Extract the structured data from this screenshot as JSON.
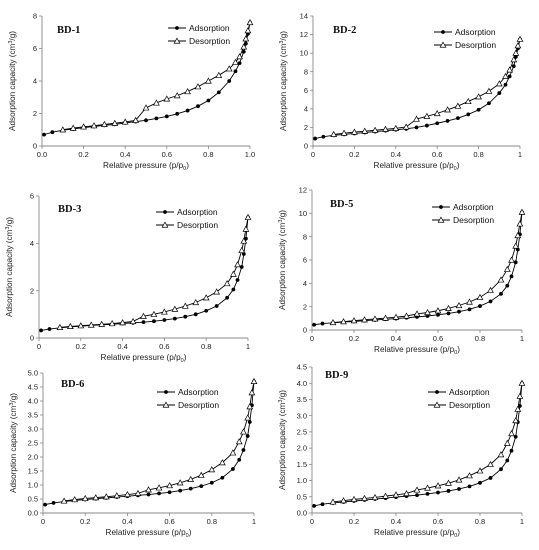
{
  "chart_data": [
    {
      "type": "line",
      "panel_label": "BD-1",
      "xlabel_main": "Relative pressure (p/p",
      "xlabel_sub": "0",
      "xlabel_end": ")",
      "ylabel_main": "Adsorption  capacity (cm",
      "ylabel_sup": "3",
      "ylabel_end": "/g)",
      "xlim": [
        0,
        1
      ],
      "ylim": [
        0,
        8
      ],
      "xticks": [
        "0.0",
        "0.2",
        "0.4",
        "0.6",
        "0.8",
        "1.0"
      ],
      "yticks": [
        "0",
        "2",
        "4",
        "6",
        "8"
      ],
      "legend_position": "top-right",
      "series": [
        {
          "name": "Adsorption",
          "marker": "filled-circle",
          "x": [
            0.01,
            0.05,
            0.1,
            0.15,
            0.2,
            0.25,
            0.3,
            0.35,
            0.4,
            0.45,
            0.5,
            0.55,
            0.6,
            0.65,
            0.7,
            0.75,
            0.8,
            0.85,
            0.9,
            0.93,
            0.95,
            0.97,
            0.98,
            0.99,
            1.0
          ],
          "y": [
            0.7,
            0.85,
            0.97,
            1.05,
            1.13,
            1.2,
            1.27,
            1.33,
            1.42,
            1.5,
            1.58,
            1.7,
            1.82,
            1.98,
            2.18,
            2.45,
            2.8,
            3.3,
            4.0,
            4.6,
            5.1,
            5.8,
            6.3,
            6.9,
            7.6
          ]
        },
        {
          "name": "Desorption",
          "marker": "open-triangle",
          "x": [
            1.0,
            0.99,
            0.98,
            0.97,
            0.95,
            0.93,
            0.9,
            0.85,
            0.8,
            0.75,
            0.7,
            0.65,
            0.6,
            0.55,
            0.5,
            0.45,
            0.4,
            0.35,
            0.3,
            0.25,
            0.2,
            0.15,
            0.1
          ],
          "y": [
            7.6,
            7.1,
            6.6,
            6.1,
            5.5,
            5.15,
            4.75,
            4.35,
            4.0,
            3.65,
            3.35,
            3.1,
            2.9,
            2.65,
            2.35,
            1.58,
            1.48,
            1.4,
            1.33,
            1.25,
            1.18,
            1.1,
            1.0
          ]
        }
      ]
    },
    {
      "type": "line",
      "panel_label": "BD-2",
      "xlabel_main": "Relative pressure (p/p",
      "xlabel_sub": "0",
      "xlabel_end": ")",
      "ylabel_main": "Adsorption capacity (cm",
      "ylabel_sup": "3",
      "ylabel_end": "/g)",
      "xlim": [
        0,
        1
      ],
      "ylim": [
        0,
        14
      ],
      "xticks": [
        "0",
        "0.2",
        "0.4",
        "0.6",
        "0.8",
        "1"
      ],
      "yticks": [
        "0",
        "2",
        "4",
        "6",
        "8",
        "10",
        "12",
        "14"
      ],
      "legend_position": "top-right",
      "series": [
        {
          "name": "Adsorption",
          "marker": "filled-circle",
          "x": [
            0.01,
            0.05,
            0.1,
            0.15,
            0.2,
            0.25,
            0.3,
            0.35,
            0.4,
            0.45,
            0.5,
            0.55,
            0.6,
            0.65,
            0.7,
            0.75,
            0.8,
            0.85,
            0.9,
            0.93,
            0.95,
            0.97,
            0.98,
            0.99,
            1.0
          ],
          "y": [
            0.8,
            1.0,
            1.15,
            1.25,
            1.35,
            1.45,
            1.55,
            1.65,
            1.75,
            1.85,
            2.0,
            2.2,
            2.45,
            2.7,
            3.0,
            3.4,
            3.9,
            4.6,
            5.7,
            6.6,
            7.5,
            8.6,
            9.6,
            10.5,
            11.5
          ]
        },
        {
          "name": "Desorption",
          "marker": "open-triangle",
          "x": [
            1.0,
            0.99,
            0.98,
            0.97,
            0.95,
            0.93,
            0.9,
            0.85,
            0.8,
            0.75,
            0.7,
            0.65,
            0.6,
            0.55,
            0.5,
            0.45,
            0.4,
            0.35,
            0.3,
            0.25,
            0.2,
            0.15,
            0.1
          ],
          "y": [
            11.5,
            10.8,
            10.0,
            9.3,
            8.2,
            7.5,
            6.7,
            5.9,
            5.3,
            4.8,
            4.3,
            3.9,
            3.5,
            3.2,
            2.9,
            2.05,
            1.9,
            1.8,
            1.7,
            1.6,
            1.5,
            1.38,
            1.25
          ]
        }
      ]
    },
    {
      "type": "line",
      "panel_label": "BD-3",
      "xlabel_main": "Relative pressure (p/p",
      "xlabel_sub": "0",
      "xlabel_end": ")",
      "ylabel_main": "Adsorption capacity (cm",
      "ylabel_sup": "3",
      "ylabel_end": "/g)",
      "xlim": [
        0,
        1
      ],
      "ylim": [
        0,
        6
      ],
      "xticks": [
        "0",
        "0.2",
        "0.4",
        "0.6",
        "0.8",
        "1"
      ],
      "yticks": [
        "0",
        "2",
        "4",
        "6"
      ],
      "legend_position": "top-right",
      "series": [
        {
          "name": "Adsorption",
          "marker": "filled-circle",
          "x": [
            0.01,
            0.05,
            0.1,
            0.15,
            0.2,
            0.25,
            0.3,
            0.35,
            0.4,
            0.45,
            0.5,
            0.55,
            0.6,
            0.65,
            0.7,
            0.75,
            0.8,
            0.85,
            0.9,
            0.93,
            0.95,
            0.97,
            0.98,
            0.99,
            1.0
          ],
          "y": [
            0.32,
            0.38,
            0.43,
            0.47,
            0.5,
            0.53,
            0.56,
            0.58,
            0.61,
            0.64,
            0.67,
            0.71,
            0.76,
            0.82,
            0.9,
            1.0,
            1.15,
            1.35,
            1.7,
            2.05,
            2.45,
            3.0,
            3.55,
            4.2,
            5.1
          ]
        },
        {
          "name": "Desorption",
          "marker": "open-triangle",
          "x": [
            1.0,
            0.99,
            0.98,
            0.97,
            0.95,
            0.93,
            0.9,
            0.85,
            0.8,
            0.75,
            0.7,
            0.65,
            0.6,
            0.55,
            0.5,
            0.45,
            0.4,
            0.35,
            0.3,
            0.25,
            0.2,
            0.15,
            0.1
          ],
          "y": [
            5.1,
            4.6,
            4.1,
            3.7,
            3.1,
            2.7,
            2.3,
            1.95,
            1.7,
            1.5,
            1.35,
            1.22,
            1.1,
            1.0,
            0.92,
            0.7,
            0.65,
            0.61,
            0.58,
            0.55,
            0.52,
            0.49,
            0.45
          ]
        }
      ]
    },
    {
      "type": "line",
      "panel_label": "BD-5",
      "xlabel_main": "Relative pressure (p/p",
      "xlabel_sub": "0",
      "xlabel_end": ")",
      "ylabel_main": "Adsorption capacity (cm",
      "ylabel_sup": "3",
      "ylabel_end": "/g)",
      "xlim": [
        0,
        1
      ],
      "ylim": [
        0,
        12
      ],
      "xticks": [
        "0",
        "0.2",
        "0.4",
        "0.6",
        "0.8",
        "1"
      ],
      "yticks": [
        "0",
        "2",
        "4",
        "6",
        "8",
        "10",
        "12"
      ],
      "legend_position": "top-right",
      "series": [
        {
          "name": "Adsorption",
          "marker": "filled-circle",
          "x": [
            0.01,
            0.05,
            0.1,
            0.15,
            0.2,
            0.25,
            0.3,
            0.35,
            0.4,
            0.45,
            0.5,
            0.55,
            0.6,
            0.65,
            0.7,
            0.75,
            0.8,
            0.85,
            0.9,
            0.93,
            0.95,
            0.97,
            0.98,
            0.99,
            1.0
          ],
          "y": [
            0.45,
            0.55,
            0.62,
            0.68,
            0.74,
            0.8,
            0.86,
            0.92,
            0.98,
            1.05,
            1.12,
            1.2,
            1.3,
            1.42,
            1.57,
            1.77,
            2.05,
            2.45,
            3.1,
            3.8,
            4.6,
            5.8,
            6.9,
            8.2,
            10.1
          ]
        },
        {
          "name": "Desorption",
          "marker": "open-triangle",
          "x": [
            1.0,
            0.99,
            0.98,
            0.97,
            0.95,
            0.93,
            0.9,
            0.85,
            0.8,
            0.75,
            0.7,
            0.65,
            0.6,
            0.55,
            0.5,
            0.45,
            0.4,
            0.35,
            0.3,
            0.25,
            0.2,
            0.15,
            0.1
          ],
          "y": [
            10.1,
            9.1,
            8.1,
            7.2,
            6.0,
            5.2,
            4.3,
            3.4,
            2.8,
            2.4,
            2.1,
            1.85,
            1.65,
            1.5,
            1.38,
            1.2,
            1.1,
            1.02,
            0.95,
            0.88,
            0.8,
            0.72,
            0.64
          ]
        }
      ]
    },
    {
      "type": "line",
      "panel_label": "BD-6",
      "xlabel_main": "Relative pressure (p/p",
      "xlabel_sub": "0",
      "xlabel_end": ")",
      "ylabel_main": "Adsorption capacity (cm",
      "ylabel_sup": "3",
      "ylabel_end": "/g)",
      "xlim": [
        0,
        1
      ],
      "ylim": [
        0,
        5
      ],
      "xticks": [
        "0",
        "0.2",
        "0.4",
        "0.6",
        "0.8",
        "1"
      ],
      "yticks": [
        "0.0",
        "0.5",
        "1.0",
        "1.5",
        "2.0",
        "2.5",
        "3.0",
        "3.5",
        "4.0",
        "4.5",
        "5.0"
      ],
      "legend_position": "top-right",
      "series": [
        {
          "name": "Adsorption",
          "marker": "filled-circle",
          "x": [
            0.01,
            0.05,
            0.1,
            0.15,
            0.2,
            0.25,
            0.3,
            0.35,
            0.4,
            0.45,
            0.5,
            0.55,
            0.6,
            0.65,
            0.7,
            0.75,
            0.8,
            0.85,
            0.9,
            0.93,
            0.95,
            0.97,
            0.98,
            0.99,
            1.0
          ],
          "y": [
            0.3,
            0.36,
            0.41,
            0.45,
            0.48,
            0.51,
            0.54,
            0.57,
            0.6,
            0.63,
            0.66,
            0.7,
            0.74,
            0.8,
            0.87,
            0.96,
            1.08,
            1.26,
            1.57,
            1.9,
            2.25,
            2.75,
            3.25,
            3.85,
            4.7
          ]
        },
        {
          "name": "Desorption",
          "marker": "open-triangle",
          "x": [
            1.0,
            0.99,
            0.98,
            0.97,
            0.95,
            0.93,
            0.9,
            0.85,
            0.8,
            0.75,
            0.7,
            0.65,
            0.6,
            0.55,
            0.5,
            0.45,
            0.4,
            0.35,
            0.3,
            0.25,
            0.2,
            0.15,
            0.1
          ],
          "y": [
            4.7,
            4.3,
            3.8,
            3.4,
            2.9,
            2.55,
            2.15,
            1.8,
            1.55,
            1.35,
            1.2,
            1.08,
            0.98,
            0.9,
            0.83,
            0.7,
            0.66,
            0.62,
            0.58,
            0.55,
            0.52,
            0.48,
            0.43
          ]
        }
      ]
    },
    {
      "type": "line",
      "panel_label": "BD-9",
      "xlabel_main": "Relative pressure (p/p",
      "xlabel_sub": "0",
      "xlabel_end": ")",
      "ylabel_main": "Adsorption capacity (cm",
      "ylabel_sup": "3",
      "ylabel_end": "/g)",
      "xlim": [
        0,
        1
      ],
      "ylim": [
        0,
        4.5
      ],
      "xticks": [
        "0",
        "0.2",
        "0.4",
        "0.6",
        "0.8",
        "1"
      ],
      "yticks": [
        "0.0",
        "0.5",
        "1.0",
        "1.5",
        "2.0",
        "2.5",
        "3.0",
        "3.5",
        "4.0",
        "4.5"
      ],
      "legend_position": "top-right",
      "series": [
        {
          "name": "Adsorption",
          "marker": "filled-circle",
          "x": [
            0.01,
            0.05,
            0.1,
            0.15,
            0.2,
            0.25,
            0.3,
            0.35,
            0.4,
            0.45,
            0.5,
            0.55,
            0.6,
            0.65,
            0.7,
            0.75,
            0.8,
            0.85,
            0.9,
            0.93,
            0.95,
            0.97,
            0.98,
            0.99,
            1.0
          ],
          "y": [
            0.22,
            0.27,
            0.31,
            0.34,
            0.37,
            0.4,
            0.43,
            0.46,
            0.49,
            0.52,
            0.55,
            0.59,
            0.63,
            0.68,
            0.74,
            0.82,
            0.93,
            1.08,
            1.35,
            1.62,
            1.92,
            2.35,
            2.8,
            3.3,
            4.0
          ]
        },
        {
          "name": "Desorption",
          "marker": "open-triangle",
          "x": [
            1.0,
            0.99,
            0.98,
            0.97,
            0.95,
            0.93,
            0.9,
            0.85,
            0.8,
            0.75,
            0.7,
            0.65,
            0.6,
            0.55,
            0.5,
            0.45,
            0.4,
            0.35,
            0.3,
            0.25,
            0.2,
            0.15,
            0.1
          ],
          "y": [
            4.0,
            3.6,
            3.2,
            2.85,
            2.45,
            2.15,
            1.8,
            1.5,
            1.3,
            1.15,
            1.02,
            0.92,
            0.84,
            0.77,
            0.71,
            0.6,
            0.56,
            0.52,
            0.48,
            0.45,
            0.42,
            0.38,
            0.34
          ]
        }
      ]
    }
  ]
}
